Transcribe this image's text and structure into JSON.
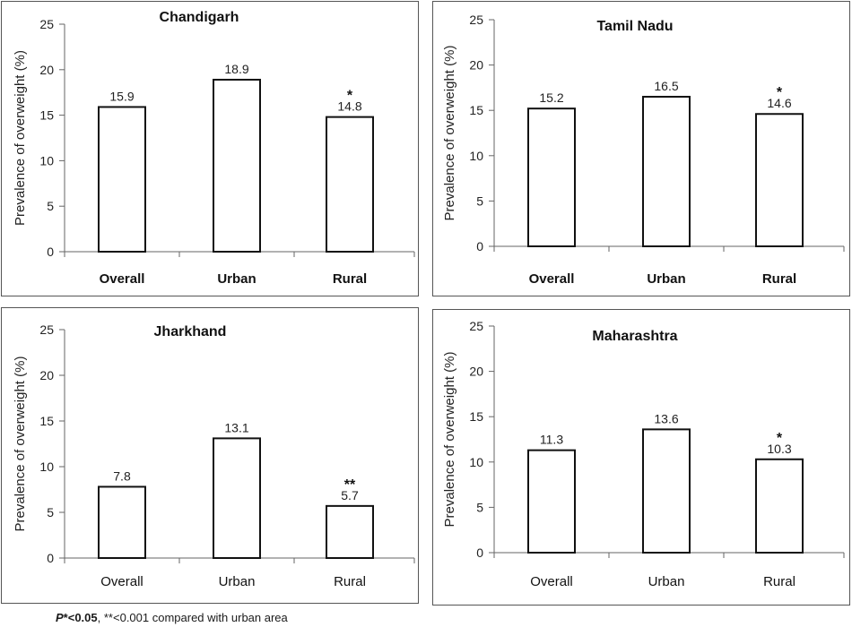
{
  "chart_data": [
    {
      "type": "bar",
      "title": "Chandigarh",
      "ylabel": "Prevalence of overweight (%)",
      "categories": [
        "Overall",
        "Urban",
        "Rural"
      ],
      "values": [
        15.9,
        18.9,
        14.8
      ],
      "value_labels": [
        "15.9",
        "18.9",
        "14.8"
      ],
      "significance": [
        "",
        "",
        "*"
      ],
      "ylim": [
        0,
        25
      ],
      "yticks": [
        "0",
        "5",
        "10",
        "15",
        "20",
        "25"
      ],
      "bold_categories": true
    },
    {
      "type": "bar",
      "title": "Tamil Nadu",
      "ylabel": "Prevalence of overweight (%)",
      "categories": [
        "Overall",
        "Urban",
        "Rural"
      ],
      "values": [
        15.2,
        16.5,
        14.6
      ],
      "value_labels": [
        "15.2",
        "16.5",
        "14.6"
      ],
      "significance": [
        "",
        "",
        "*"
      ],
      "ylim": [
        0,
        25
      ],
      "yticks": [
        "0",
        "5",
        "10",
        "15",
        "20",
        "25"
      ],
      "bold_categories": true
    },
    {
      "type": "bar",
      "title": "Jharkhand",
      "ylabel": "Prevalence of overweight (%)",
      "categories": [
        "Overall",
        "Urban",
        "Rural"
      ],
      "values": [
        7.8,
        13.1,
        5.7
      ],
      "value_labels": [
        "7.8",
        "13.1",
        "5.7"
      ],
      "significance": [
        "",
        "",
        "**"
      ],
      "ylim": [
        0,
        25
      ],
      "yticks": [
        "0",
        "5",
        "10",
        "15",
        "20",
        "25"
      ],
      "bold_categories": false
    },
    {
      "type": "bar",
      "title": "Maharashtra",
      "ylabel": "Prevalence of overweight (%)",
      "categories": [
        "Overall",
        "Urban",
        "Rural"
      ],
      "values": [
        11.3,
        13.6,
        10.3
      ],
      "value_labels": [
        "11.3",
        "13.6",
        "10.3"
      ],
      "significance": [
        "",
        "",
        "*"
      ],
      "ylim": [
        0,
        25
      ],
      "yticks": [
        "0",
        "5",
        "10",
        "15",
        "20",
        "25"
      ],
      "bold_categories": false
    }
  ],
  "footnote": {
    "p": "P",
    "sig1": "*<0.05",
    "sep": ",",
    "sig2": "**<0.001 compared with urban area"
  }
}
